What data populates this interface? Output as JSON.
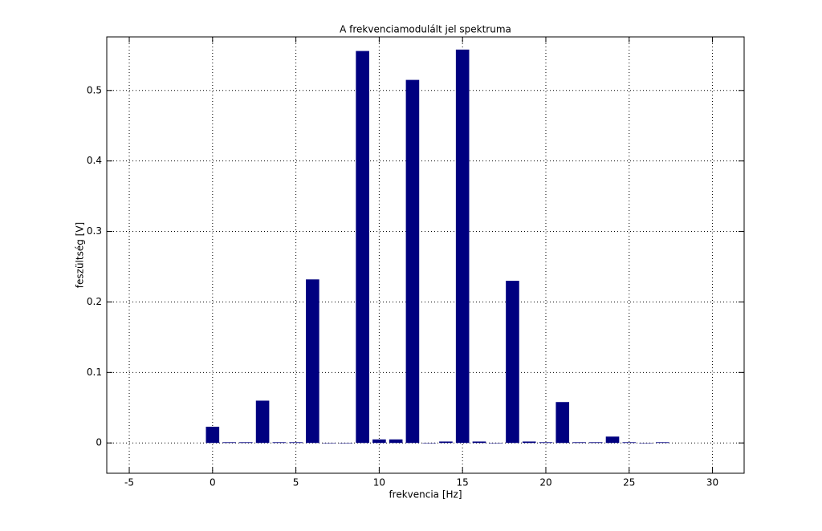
{
  "chart_data": {
    "type": "bar",
    "title": "A frekvenciamodulált jel spektruma",
    "xlabel": "frekvencia [Hz]",
    "ylabel": "feszültség [V]",
    "x": [
      0,
      1,
      2,
      3,
      4,
      5,
      6,
      7,
      8,
      9,
      10,
      11,
      12,
      13,
      14,
      15,
      16,
      17,
      18,
      19,
      20,
      21,
      22,
      23,
      24,
      25,
      26,
      27
    ],
    "values": [
      0.023,
      0.001,
      0.001,
      0.06,
      0.001,
      0.001,
      0.232,
      0,
      0,
      0.556,
      0.005,
      0.005,
      0.515,
      0,
      0.002,
      0.558,
      0.002,
      0,
      0.23,
      0.002,
      0.001,
      0.058,
      0.001,
      0.001,
      0.009,
      0.001,
      0,
      0.001
    ],
    "color": "#000080",
    "xlim": [
      -6.35,
      31.9
    ],
    "xticks": [
      -5,
      0,
      5,
      10,
      15,
      20,
      25,
      30
    ],
    "ylim": [
      -0.043,
      0.576
    ],
    "yticks": [
      0,
      0.1,
      0.2,
      0.3,
      0.4,
      0.5
    ],
    "grid": true
  }
}
